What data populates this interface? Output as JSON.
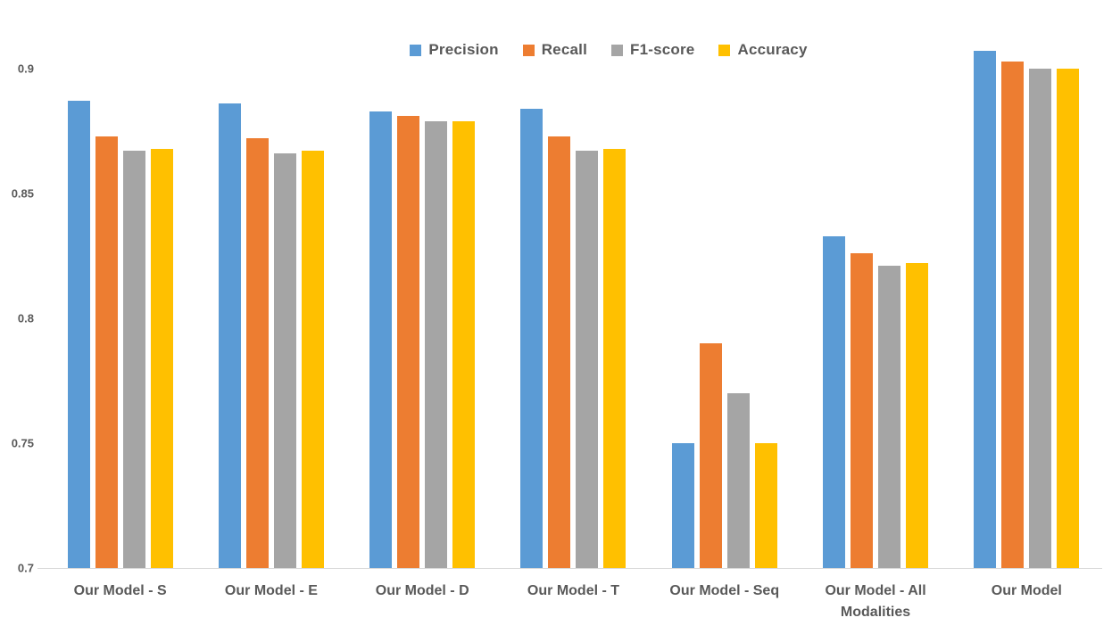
{
  "chart_data": {
    "type": "bar",
    "title": "",
    "categories": [
      "Our Model - S",
      "Our Model - E",
      "Our Model - D",
      "Our Model - T",
      "Our Model - Seq",
      "Our Model - All Modalities",
      "Our Model"
    ],
    "series": [
      {
        "name": "Precision",
        "color": "#5B9BD5",
        "values": [
          0.887,
          0.886,
          0.883,
          0.884,
          0.75,
          0.833,
          0.907
        ]
      },
      {
        "name": "Recall",
        "color": "#ED7D31",
        "values": [
          0.873,
          0.872,
          0.881,
          0.873,
          0.79,
          0.826,
          0.903
        ]
      },
      {
        "name": "F1-score",
        "color": "#A5A5A5",
        "values": [
          0.867,
          0.866,
          0.879,
          0.867,
          0.77,
          0.821,
          0.9
        ]
      },
      {
        "name": "Accuracy",
        "color": "#FFC000",
        "values": [
          0.868,
          0.867,
          0.879,
          0.868,
          0.75,
          0.822,
          0.9
        ]
      }
    ],
    "ylim": [
      0.7,
      0.9
    ],
    "yticks": [
      "0.9",
      "0.85",
      "0.8",
      "0.75",
      "0.7"
    ],
    "ytick_values": [
      0.9,
      0.85,
      0.8,
      0.75,
      0.7
    ],
    "legend_position": "top",
    "grid": false,
    "axis_line_color": "#d9d9d9",
    "text_color": "#595959",
    "background_color": "#ffffff"
  }
}
